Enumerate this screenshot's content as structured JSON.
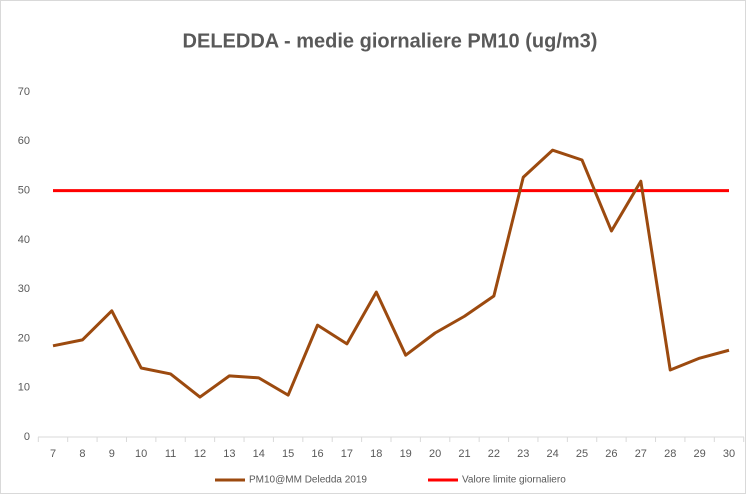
{
  "chart_data": {
    "type": "line",
    "title": "DELEDDA - medie giornaliere PM10 (ug/m3)",
    "categories": [
      7,
      8,
      9,
      10,
      11,
      12,
      13,
      14,
      15,
      16,
      17,
      18,
      19,
      20,
      21,
      22,
      23,
      24,
      25,
      26,
      27,
      28,
      29,
      30
    ],
    "series": [
      {
        "name": "PM10@MM Deledda 2019",
        "color": "#9c4a0f",
        "values": [
          18.5,
          19.7,
          25.6,
          14.0,
          12.8,
          8.1,
          12.4,
          12.0,
          8.5,
          22.7,
          18.9,
          29.4,
          16.6,
          21.1,
          24.5,
          28.6,
          52.7,
          58.2,
          56.2,
          41.8,
          51.9,
          13.6,
          16.0,
          17.6
        ]
      },
      {
        "name": "Valore limite giornaliero",
        "color": "#ff0000",
        "values": [
          50,
          50,
          50,
          50,
          50,
          50,
          50,
          50,
          50,
          50,
          50,
          50,
          50,
          50,
          50,
          50,
          50,
          50,
          50,
          50,
          50,
          50,
          50,
          50
        ]
      }
    ],
    "ylim": [
      0,
      70
    ],
    "yticks": [
      0,
      10,
      20,
      30,
      40,
      50,
      60,
      70
    ],
    "grid": false,
    "legend": "bottom"
  }
}
